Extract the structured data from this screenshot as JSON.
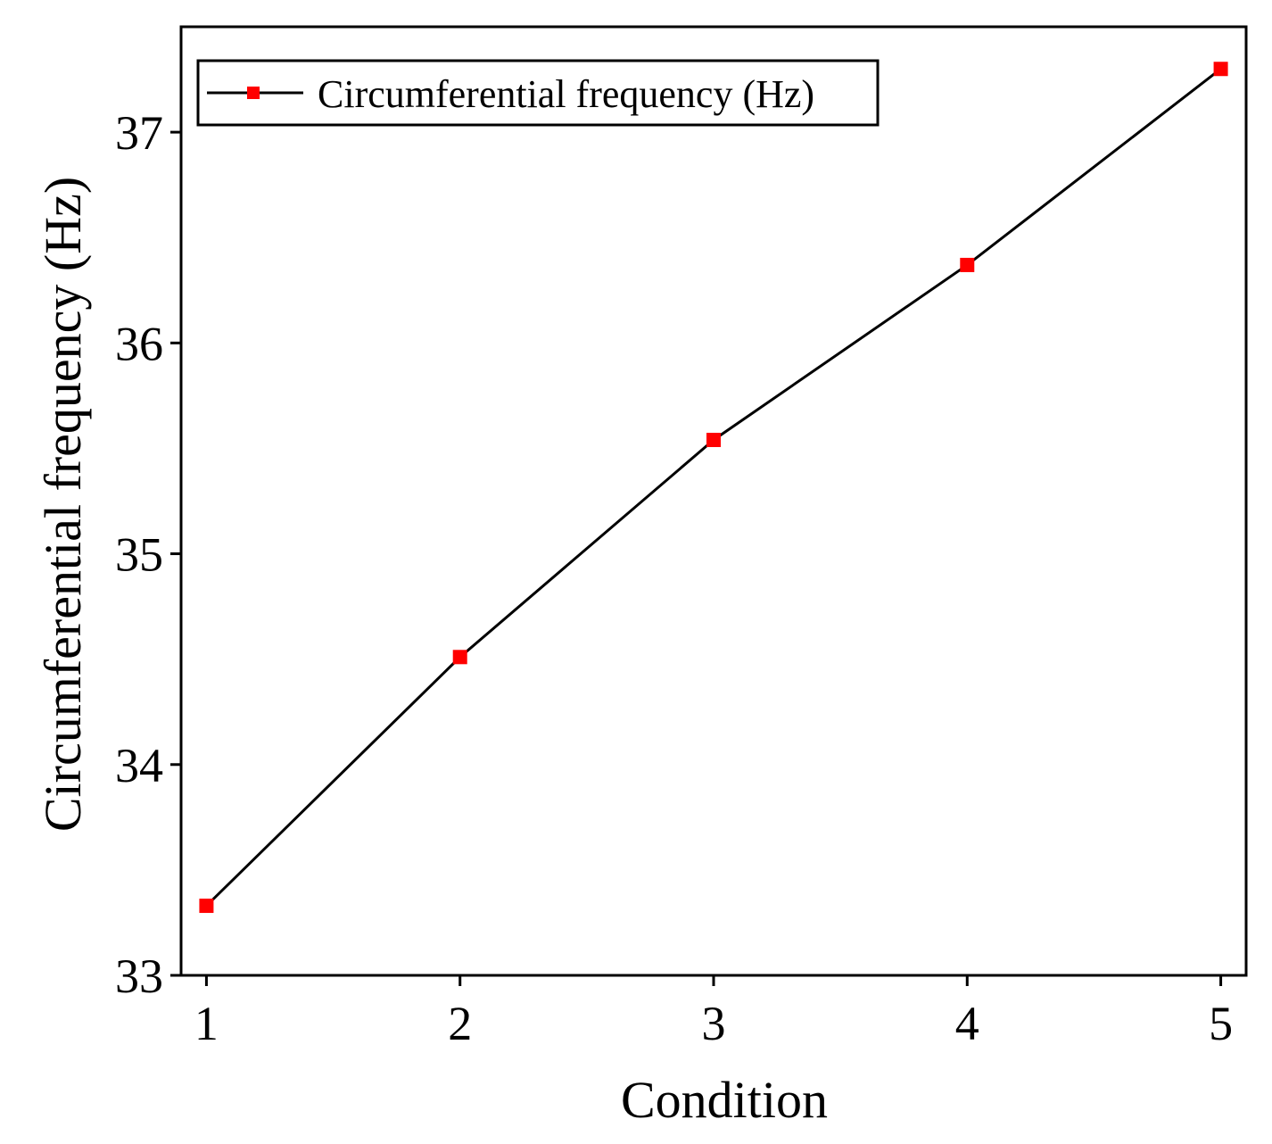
{
  "chart_data": {
    "type": "line",
    "x": [
      1,
      2,
      3,
      4,
      5
    ],
    "series": [
      {
        "name": "Circumferential frequency (Hz)",
        "values": [
          33.33,
          34.51,
          35.54,
          36.37,
          37.3
        ],
        "line_color": "#000000",
        "marker_color": "#ff0000",
        "marker": "square"
      }
    ],
    "xlabel": "Condition",
    "ylabel": "Circumferential frequency (Hz)",
    "xlim": [
      0.9,
      5.1
    ],
    "ylim": [
      33,
      37.5
    ],
    "xticks": [
      1,
      2,
      3,
      4,
      5
    ],
    "yticks": [
      33,
      34,
      35,
      36,
      37
    ],
    "grid": false,
    "legend_position": "top-left"
  }
}
